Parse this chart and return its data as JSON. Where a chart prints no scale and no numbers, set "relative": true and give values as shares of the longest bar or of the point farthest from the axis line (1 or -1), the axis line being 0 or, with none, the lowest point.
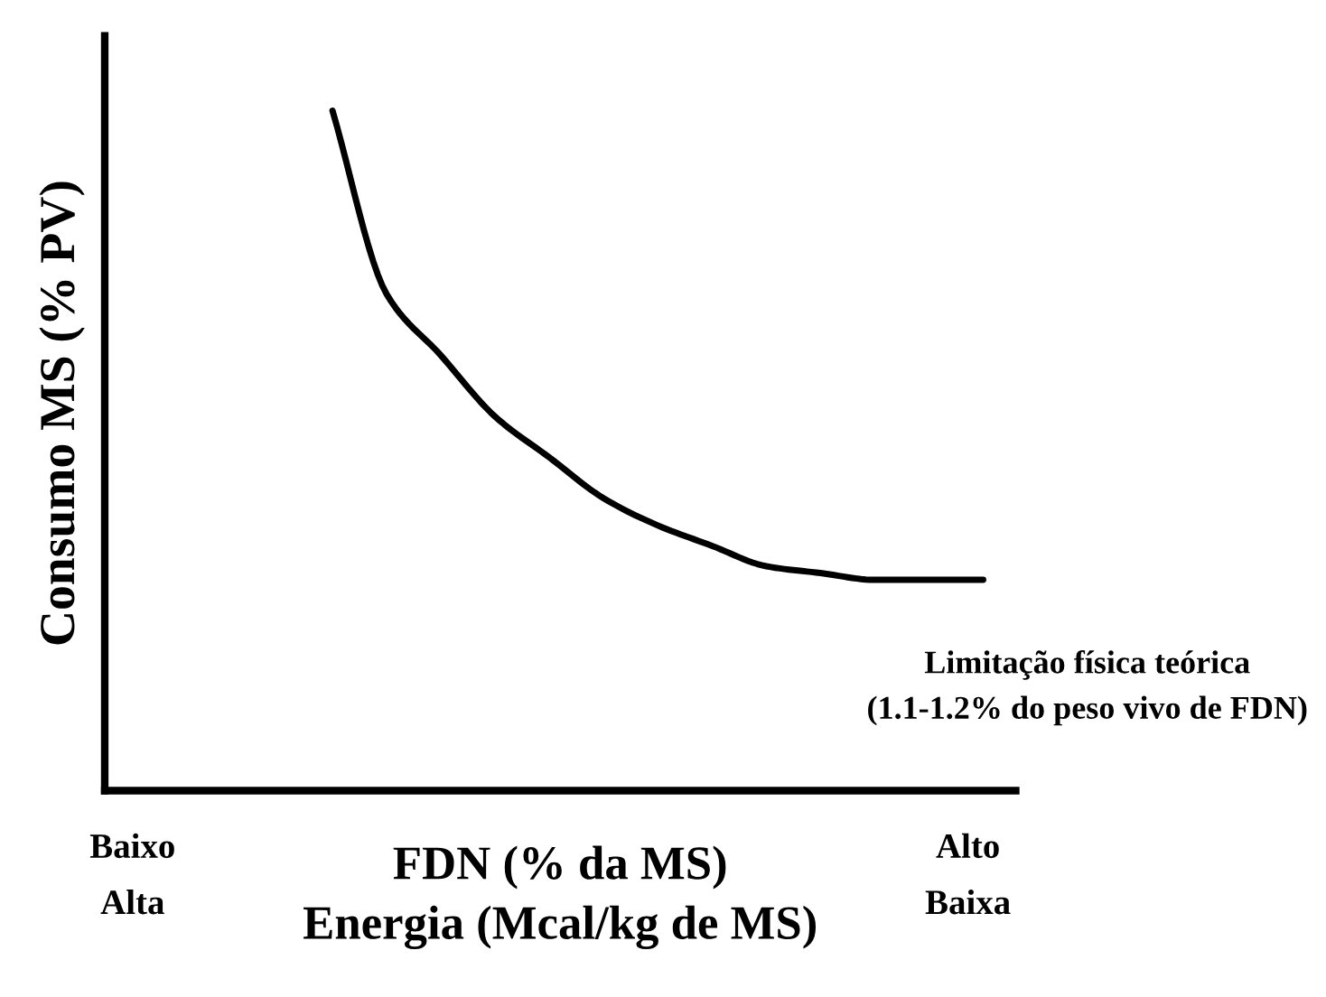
{
  "chart_data": {
    "type": "line",
    "relative": true,
    "ylabel": "Consumo MS (% PV)",
    "xlabel": "FDN (% da MS)\nEnergia (Mcal/kg de MS)",
    "categories": [
      null,
      null,
      null,
      null,
      null,
      null,
      null,
      null,
      null,
      null,
      null,
      null,
      null
    ],
    "series": [
      {
        "color": "#000000",
        "values": [
          1,
          0.73,
          0.64,
          0.55,
          0.49,
          0.43,
          0.39,
          0.36,
          0.33,
          0.32,
          0.31,
          0.31,
          0.31
        ]
      }
    ],
    "annotations": [
      "Limitação física teórica\n(1.1-1.2% do peso vivo de FDN)",
      "Baixo\nAlta",
      "Alto\nBaixa"
    ],
    "marker": "none"
  }
}
